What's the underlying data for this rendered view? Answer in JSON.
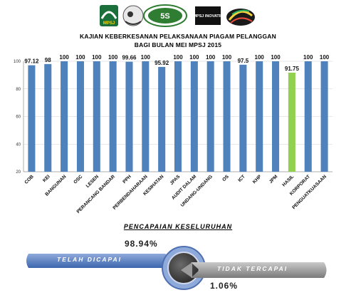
{
  "header": {
    "title_line1": "KAJIAN KEBERKESANAN PELAKSANAAN PIAGAM PELANGGAN",
    "title_line2": "BAGI BULAN MEI MPSJ 2015",
    "logos": [
      "mpsj-logo",
      "mascot-logo",
      "5s-audit-logo",
      "mpsj-inovatif-logo",
      "tri-colour-logo"
    ],
    "logo_texts": [
      "MPSJ",
      "5S",
      "MPSJ INOVATIF"
    ]
  },
  "chart_data": {
    "type": "bar",
    "categories": [
      "COB",
      "KEI",
      "BANGUNAN",
      "OSC",
      "LESEN",
      "PERANCANG BANDAR",
      "PPH",
      "PERBENDAHARAAN",
      "KESIHATAN",
      "JPAS",
      "AUDIT DALAM",
      "UNDANG-UNDANG",
      "OS",
      "ICT",
      "KHP",
      "JPM",
      "HASIL",
      "KORPORAT",
      "PENGUATKUASAAN"
    ],
    "values": [
      97.12,
      98,
      100,
      100,
      100,
      100,
      99.66,
      100,
      95.92,
      100,
      100,
      100,
      100,
      97.5,
      100,
      100,
      91.75,
      100,
      100
    ],
    "value_labels": [
      "97.12",
      "98",
      "100",
      "100",
      "100",
      "100",
      "99.66",
      "100",
      "95.92",
      "100",
      "100",
      "100",
      "100",
      "97.5",
      "100",
      "100",
      "91.75",
      "100",
      "100"
    ],
    "ylim": [
      20,
      100
    ],
    "yticks": [
      20,
      40,
      60,
      80,
      100
    ],
    "grid": true,
    "bar_color": "#4f81bd",
    "highlight_color": "#92d050",
    "highlight_category": "HASIL"
  },
  "summary": {
    "title": "PENCAPAIAN KESELURUHAN",
    "achieved_pct": "98.94%",
    "achieved_label": "TELAH DICAPAI",
    "not_achieved_pct": "1.06%",
    "not_achieved_label": "TIDAK TERCAPAI",
    "achieved_color": "#5b7fbd",
    "not_achieved_color": "#8c8c8c"
  }
}
